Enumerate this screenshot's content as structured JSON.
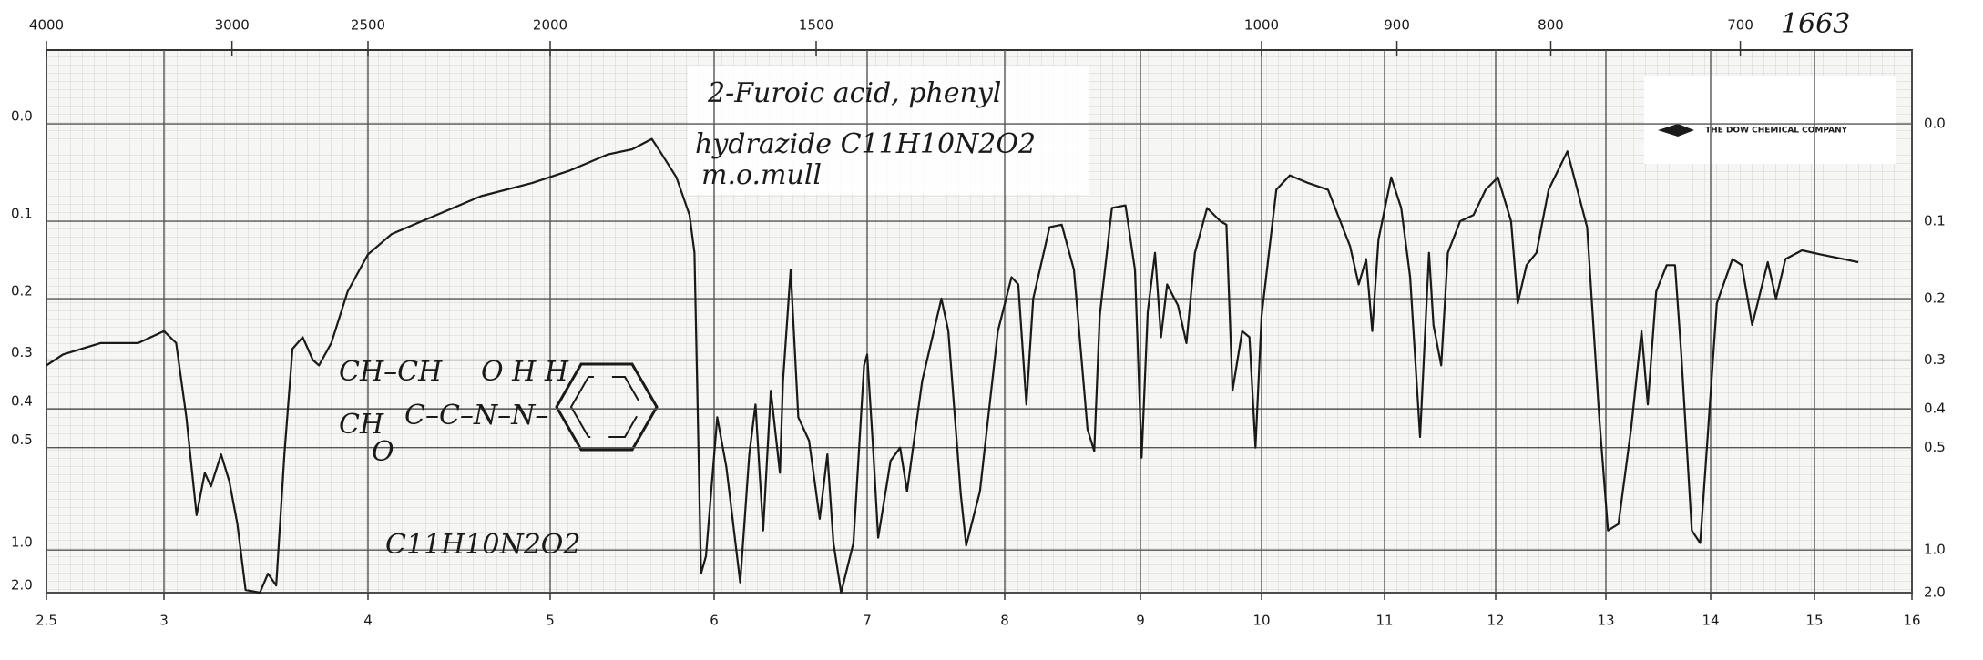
{
  "chart_data": {
    "type": "line",
    "color": "#1a1a1a",
    "grid": true,
    "yscale": "transmittance",
    "xlim": [
      2.5,
      16
    ],
    "xticks": [
      2.5,
      3,
      4,
      5,
      6,
      7,
      8,
      9,
      10,
      11,
      12,
      13,
      14,
      15,
      16
    ],
    "x2ticks": [
      4000,
      3000,
      2500,
      2000,
      1500,
      1000,
      900,
      800,
      700
    ],
    "ylim": [
      2,
      -0.06
    ],
    "yticks": [
      {
        "value": 0,
        "label": "0.0"
      },
      0.1,
      0.2,
      0.3,
      0.4,
      0.5,
      {
        "value": 1,
        "label": "1.0"
      },
      {
        "value": 2,
        "label": "2.0"
      }
    ],
    "annotations": [
      "2-Furoic acid, phenyl",
      "hydrazide C11H10N2O2",
      "m.o.mull",
      "1663",
      "C11H10N2O2",
      "THE DOW CHEMICAL COMPANY",
      "CH–CH",
      "O  H  H",
      "CH",
      "C–C–N–N–",
      "O"
    ],
    "x": [
      2.5,
      2.57,
      2.73,
      2.89,
      3.0,
      3.06,
      3.11,
      3.16,
      3.2,
      3.23,
      3.28,
      3.32,
      3.36,
      3.4,
      3.47,
      3.51,
      3.55,
      3.59,
      3.63,
      3.68,
      3.73,
      3.76,
      3.82,
      3.9,
      4.0,
      4.13,
      4.34,
      4.62,
      4.9,
      5.12,
      5.35,
      5.5,
      5.62,
      5.67,
      5.77,
      5.85,
      5.88,
      5.92,
      5.95,
      6.02,
      6.08,
      6.17,
      6.23,
      6.27,
      6.32,
      6.37,
      6.43,
      6.45,
      6.5,
      6.55,
      6.62,
      6.69,
      6.74,
      6.78,
      6.83,
      6.91,
      6.98,
      7.0,
      7.04,
      7.08,
      7.17,
      7.24,
      7.29,
      7.4,
      7.54,
      7.59,
      7.68,
      7.72,
      7.82,
      7.95,
      8.05,
      8.1,
      8.16,
      8.21,
      8.33,
      8.42,
      8.51,
      8.61,
      8.66,
      8.7,
      8.79,
      8.89,
      8.96,
      9.01,
      9.06,
      9.12,
      9.17,
      9.22,
      9.31,
      9.38,
      9.45,
      9.55,
      9.66,
      9.71,
      9.76,
      9.84,
      9.9,
      9.95,
      10.0,
      10.12,
      10.23,
      10.38,
      10.54,
      10.64,
      10.72,
      10.79,
      10.85,
      10.9,
      10.95,
      11.06,
      11.15,
      11.23,
      11.32,
      11.4,
      11.44,
      11.51,
      11.57,
      11.68,
      11.8,
      11.91,
      12.02,
      12.14,
      12.2,
      12.28,
      12.37,
      12.48,
      12.65,
      12.83,
      12.94,
      13.02,
      13.12,
      13.24,
      13.34,
      13.4,
      13.48,
      13.58,
      13.66,
      13.72,
      13.82,
      13.9,
      13.96,
      14.06,
      14.21,
      14.3,
      14.4,
      14.48,
      14.55,
      14.63,
      14.72,
      14.88,
      15.06,
      15.45
    ],
    "values": [
      0.31,
      0.29,
      0.27,
      0.27,
      0.25,
      0.27,
      0.42,
      0.76,
      0.58,
      0.63,
      0.52,
      0.61,
      0.81,
      1.8,
      2.0,
      1.3,
      1.6,
      0.52,
      0.28,
      0.26,
      0.3,
      0.31,
      0.27,
      0.19,
      0.14,
      0.115,
      0.096,
      0.072,
      0.058,
      0.045,
      0.029,
      0.024,
      0.014,
      0.026,
      0.052,
      0.093,
      0.138,
      1.3,
      1.06,
      0.42,
      0.56,
      1.5,
      0.52,
      0.39,
      0.85,
      0.36,
      0.58,
      0.34,
      0.16,
      0.42,
      0.48,
      0.78,
      0.52,
      0.94,
      2.0,
      0.94,
      0.31,
      0.29,
      0.48,
      0.9,
      0.54,
      0.5,
      0.65,
      0.34,
      0.2,
      0.25,
      0.66,
      0.96,
      0.65,
      0.25,
      0.17,
      0.18,
      0.39,
      0.2,
      0.107,
      0.104,
      0.16,
      0.45,
      0.51,
      0.226,
      0.085,
      0.082,
      0.16,
      0.53,
      0.22,
      0.138,
      0.26,
      0.18,
      0.21,
      0.27,
      0.138,
      0.085,
      0.1,
      0.104,
      0.36,
      0.25,
      0.26,
      0.5,
      0.226,
      0.065,
      0.05,
      0.058,
      0.065,
      0.1,
      0.13,
      0.18,
      0.146,
      0.25,
      0.122,
      0.052,
      0.085,
      0.17,
      0.47,
      0.138,
      0.24,
      0.31,
      0.138,
      0.1,
      0.093,
      0.065,
      0.052,
      0.1,
      0.207,
      0.154,
      0.138,
      0.065,
      0.026,
      0.107,
      0.42,
      0.85,
      0.81,
      0.45,
      0.25,
      0.39,
      0.19,
      0.154,
      0.154,
      0.29,
      0.85,
      0.94,
      0.52,
      0.207,
      0.146,
      0.154,
      0.24,
      0.19,
      0.15,
      0.2,
      0.146,
      0.135,
      0.14,
      0.15
    ]
  }
}
